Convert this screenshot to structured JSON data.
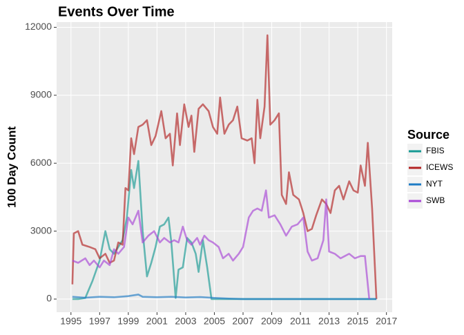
{
  "chart_data": {
    "type": "line",
    "title": "Events Over Time",
    "y_label": "100 Day Count",
    "legend_title": "Source",
    "legend": "right",
    "grid": true,
    "xlim": [
      1994,
      2017.4
    ],
    "xticks": [
      1995,
      1997,
      1999,
      2001,
      2003,
      2005,
      2007,
      2009,
      2011,
      2013,
      2015,
      2017
    ],
    "ylim": [
      -580,
      12230
    ],
    "yticks": [
      0,
      3000,
      6000,
      9000,
      12000
    ],
    "series": [
      {
        "name": "FBIS",
        "color": "#179a94",
        "x": [
          1995.1,
          1995.5,
          1996,
          1996.5,
          1997,
          1997.4,
          1997.7,
          1998,
          1998.3,
          1998.6,
          1998.9,
          1999.2,
          1999.4,
          1999.7,
          2000,
          2000.3,
          2000.6,
          2000.9,
          2001.2,
          2001.5,
          2001.8,
          2002,
          2002.3,
          2002.5,
          2002.8,
          2003.1,
          2003.4,
          2003.7,
          2003.9,
          2004.2,
          2004.5,
          2004.8,
          2016.3
        ],
        "values": [
          0,
          0,
          50,
          800,
          1700,
          3000,
          2200,
          2000,
          2300,
          2600,
          3600,
          5700,
          4900,
          6100,
          3000,
          1000,
          1600,
          2300,
          3200,
          3300,
          3600,
          2500,
          50,
          1300,
          1400,
          2700,
          2500,
          2000,
          1200,
          2600,
          1400,
          0,
          0
        ]
      },
      {
        "name": "ICEWS",
        "color": "#b22222",
        "x": [
          1995.1,
          1995.2,
          1995.5,
          1995.8,
          1996.3,
          1996.7,
          1997,
          1997.4,
          1997.7,
          1998,
          1998.3,
          1998.6,
          1998.8,
          1999,
          1999.2,
          1999.4,
          1999.7,
          2000,
          2000.3,
          2000.6,
          2000.9,
          2001.3,
          2001.6,
          2001.9,
          2002.1,
          2002.4,
          2002.6,
          2002.9,
          2003.2,
          2003.4,
          2003.6,
          2003.9,
          2004.2,
          2004.6,
          2004.9,
          2005.2,
          2005.4,
          2005.7,
          2006,
          2006.3,
          2006.6,
          2006.9,
          2007.3,
          2007.6,
          2007.8,
          2008,
          2008.2,
          2008.5,
          2008.7,
          2008.9,
          2009.2,
          2009.5,
          2009.7,
          2010,
          2010.2,
          2010.5,
          2010.9,
          2011.2,
          2011.5,
          2011.8,
          2012.1,
          2012.5,
          2012.8,
          2013.1,
          2013.4,
          2013.7,
          2014,
          2014.4,
          2014.7,
          2015,
          2015.2,
          2015.5,
          2015.7,
          2016,
          2016.3
        ],
        "values": [
          650,
          2900,
          3000,
          2400,
          2300,
          2200,
          1800,
          2000,
          1600,
          1700,
          2500,
          2400,
          4900,
          4800,
          7100,
          6400,
          7600,
          7700,
          7900,
          6800,
          7200,
          8300,
          7100,
          7300,
          5900,
          8200,
          6800,
          8600,
          7600,
          8100,
          6500,
          8400,
          8600,
          8300,
          7600,
          7300,
          8900,
          7300,
          7700,
          7900,
          8500,
          7100,
          7000,
          7100,
          6000,
          8800,
          7100,
          8500,
          11650,
          7700,
          7900,
          8200,
          4600,
          4200,
          5600,
          4600,
          4400,
          3800,
          3000,
          3100,
          3700,
          4400,
          4200,
          3800,
          4800,
          5000,
          4400,
          5200,
          4800,
          4700,
          5900,
          5000,
          6900,
          4000,
          0
        ]
      },
      {
        "name": "NYT",
        "color": "#1e7bc4",
        "x": [
          1995.1,
          1996,
          1997,
          1998,
          1999,
          1999.7,
          2000,
          2001,
          2002,
          2003,
          2004,
          2005,
          2006,
          2007,
          2016.3
        ],
        "values": [
          100,
          60,
          100,
          80,
          130,
          200,
          100,
          80,
          100,
          70,
          90,
          50,
          20,
          0,
          0
        ]
      },
      {
        "name": "SWB",
        "color": "#a845d6",
        "x": [
          1995.1,
          1995.5,
          1996,
          1996.3,
          1996.6,
          1997,
          1997.3,
          1997.7,
          1998,
          1998.3,
          1998.7,
          1999,
          1999.3,
          1999.7,
          2000,
          2000.4,
          2000.8,
          2001.2,
          2001.5,
          2001.9,
          2002.2,
          2002.5,
          2002.8,
          2003.1,
          2003.4,
          2003.8,
          2004,
          2004.3,
          2004.6,
          2004.9,
          2005.3,
          2005.6,
          2006,
          2006.3,
          2006.7,
          2007,
          2007.4,
          2007.7,
          2008,
          2008.3,
          2008.6,
          2008.8,
          2009.2,
          2009.6,
          2010,
          2010.4,
          2010.8,
          2011.2,
          2011.5,
          2011.8,
          2012.2,
          2012.6,
          2012.8,
          2013,
          2013.4,
          2013.8,
          2014.1,
          2014.4,
          2014.8,
          2015.2,
          2015.5,
          2015.8
        ],
        "values": [
          1700,
          1600,
          1800,
          1500,
          1700,
          1400,
          1700,
          1500,
          2200,
          2000,
          2300,
          3600,
          3300,
          3900,
          2500,
          2800,
          3000,
          2500,
          2700,
          2500,
          2600,
          2500,
          3200,
          2600,
          2400,
          2700,
          2400,
          2800,
          2600,
          2500,
          2300,
          1800,
          2000,
          1700,
          2000,
          2300,
          3600,
          3900,
          4000,
          3900,
          4800,
          3600,
          3700,
          3300,
          2800,
          3200,
          3300,
          3600,
          2100,
          1700,
          1800,
          2600,
          4400,
          2100,
          2000,
          1800,
          1900,
          2000,
          1800,
          1900,
          1900,
          0
        ]
      }
    ]
  }
}
